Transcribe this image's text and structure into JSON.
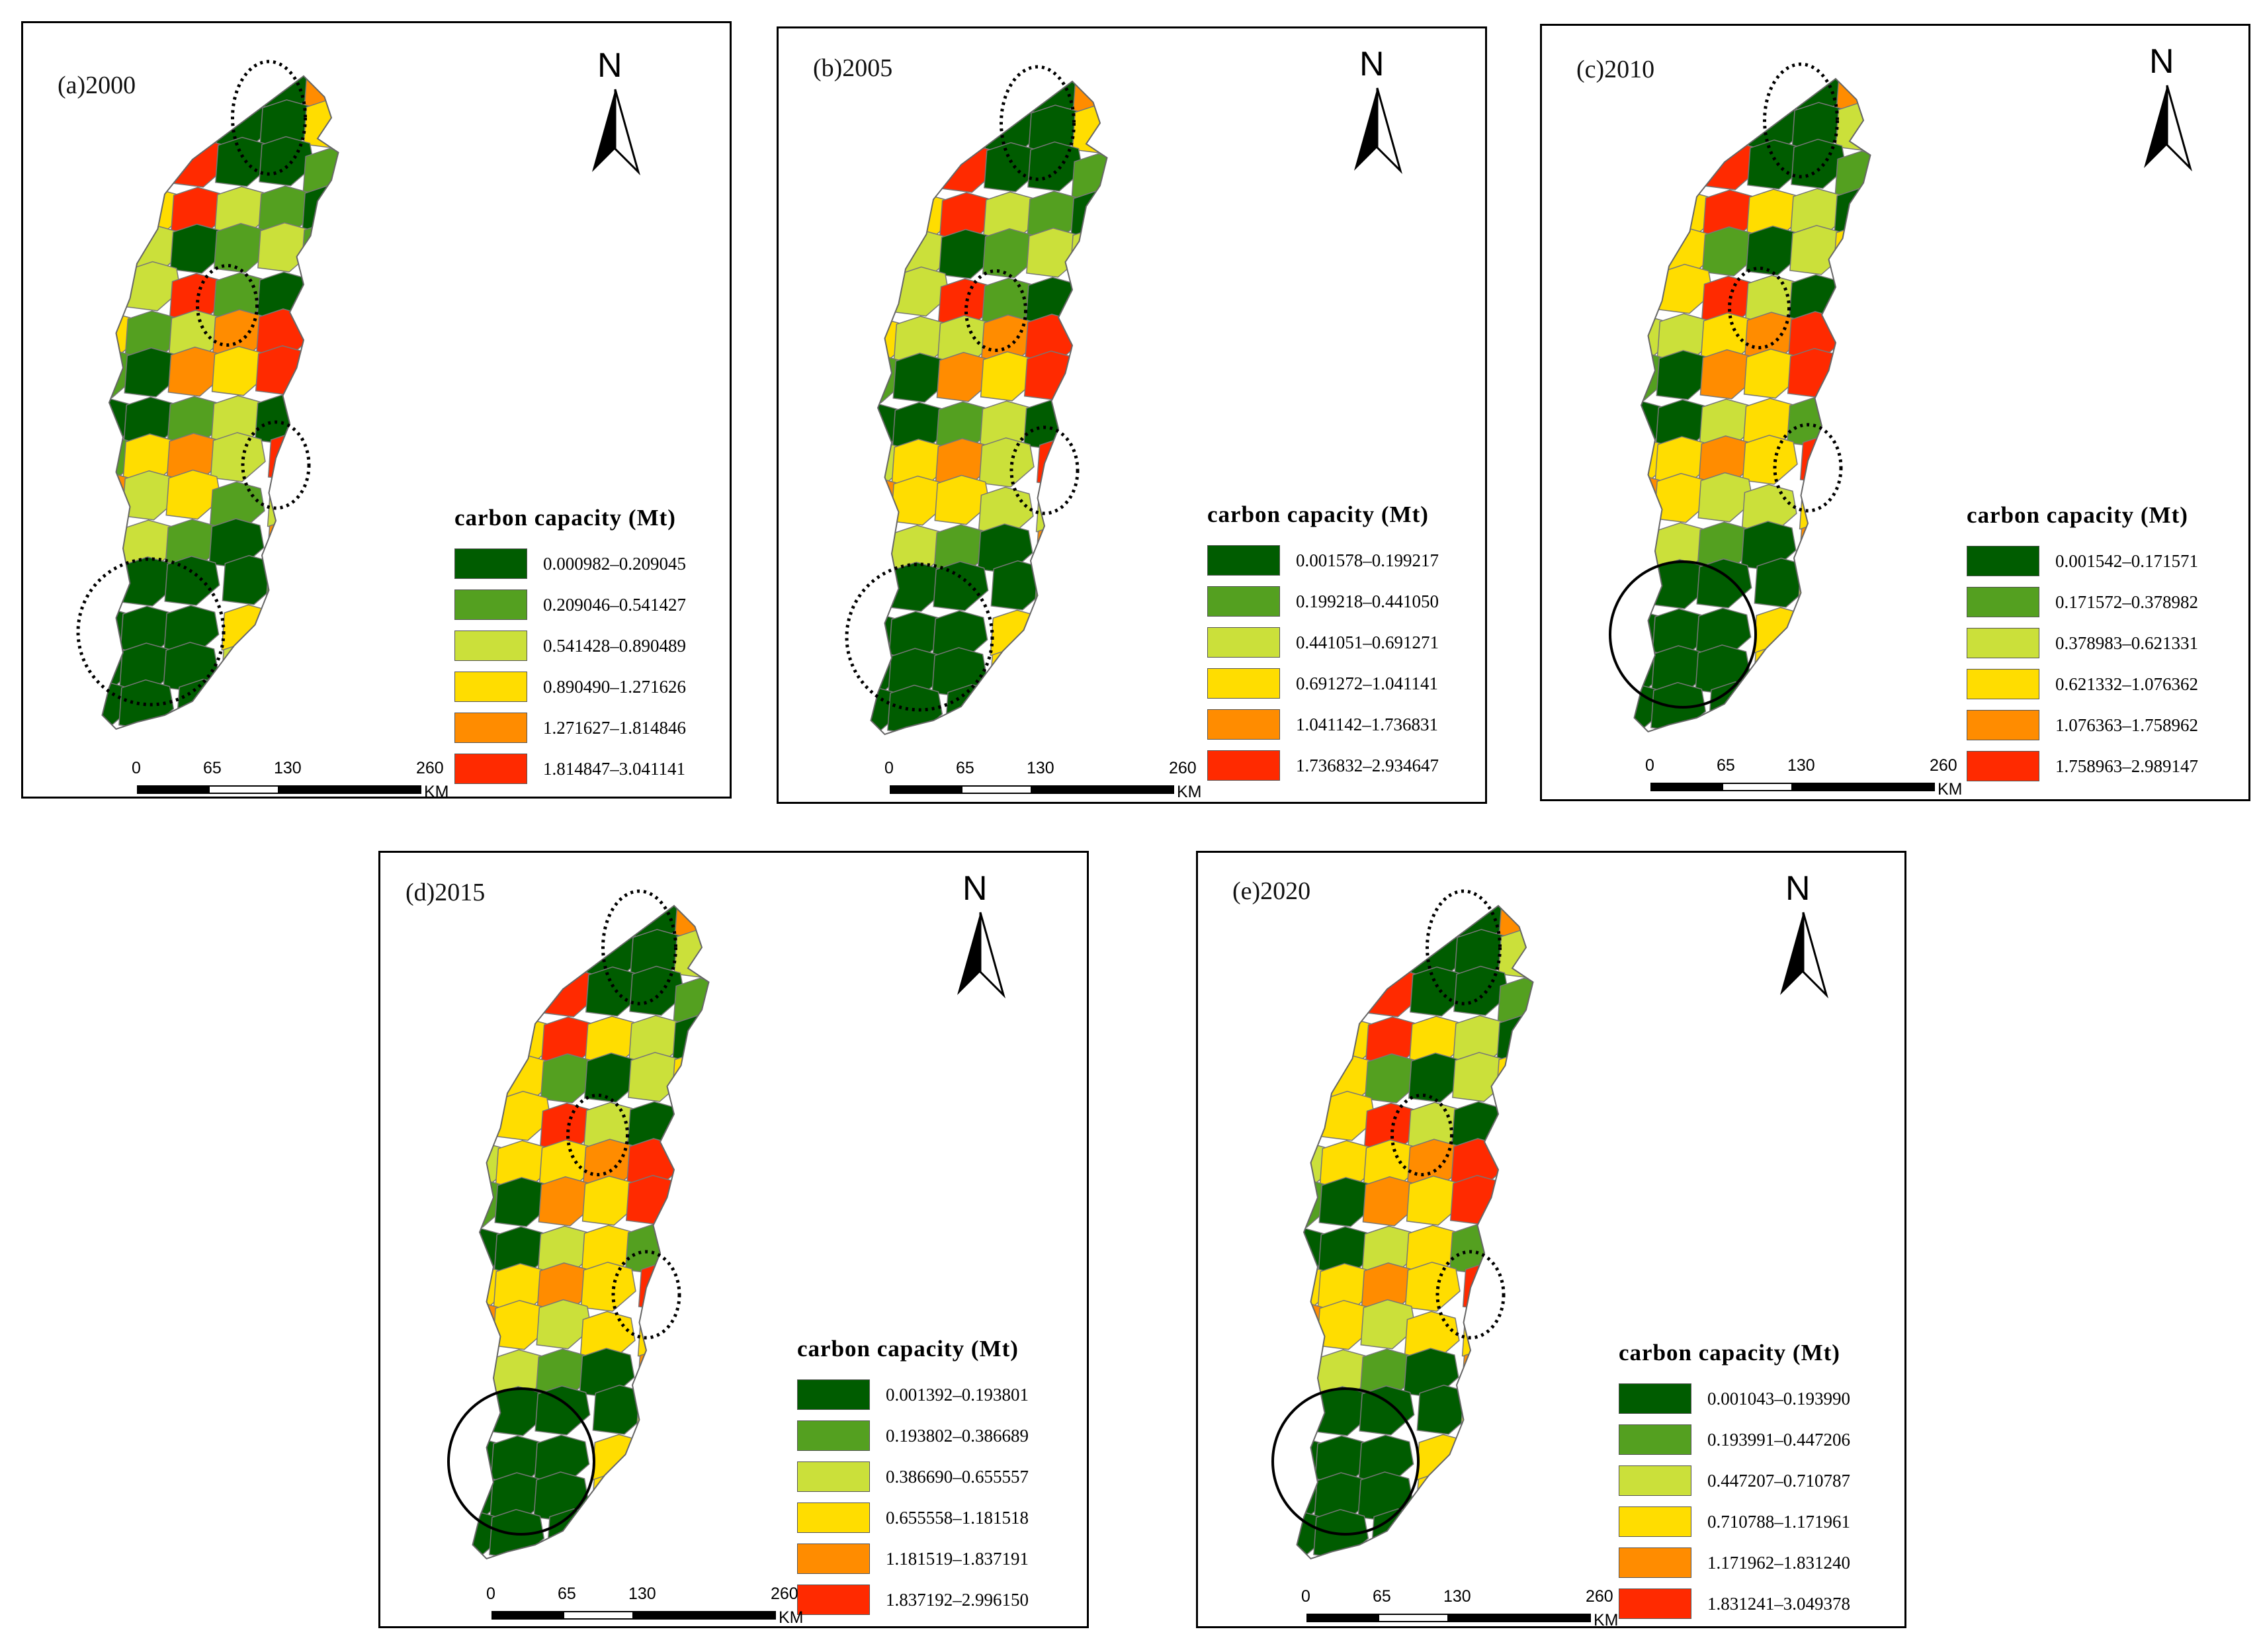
{
  "figure": {
    "legend_title": "carbon capacity (Mt)",
    "scale_ticks": [
      "0",
      "65",
      "130",
      "260"
    ],
    "scale_unit": "KM",
    "north_label": "N",
    "class_colors": [
      "#005c00",
      "#54a020",
      "#cbe03a",
      "#ffdd00",
      "#ff8c00",
      "#ff2a00"
    ]
  },
  "panels": [
    {
      "id": "a",
      "title": "(a)2000",
      "legend": [
        "0.000982–0.209045",
        "0.209046–0.541427",
        "0.541428–0.890489",
        "0.890490–1.271626",
        "1.271627–1.814846",
        "1.814847–3.041141"
      ]
    },
    {
      "id": "b",
      "title": "(b)2005",
      "legend": [
        "0.001578–0.199217",
        "0.199218–0.441050",
        "0.441051–0.691271",
        "0.691272–1.041141",
        "1.041142–1.736831",
        "1.736832–2.934647"
      ]
    },
    {
      "id": "c",
      "title": "(c)2010",
      "legend": [
        "0.001542–0.171571",
        "0.171572–0.378982",
        "0.378983–0.621331",
        "0.621332–1.076362",
        "1.076363–1.758962",
        "1.758963–2.989147"
      ]
    },
    {
      "id": "d",
      "title": "(d)2015",
      "legend": [
        "0.001392–0.193801",
        "0.193802–0.386689",
        "0.386690–0.655557",
        "0.655558–1.181518",
        "1.181519–1.837191",
        "1.837192–2.996150"
      ]
    },
    {
      "id": "e",
      "title": "(e)2020",
      "legend": [
        "0.001043–0.193990",
        "0.193991–0.447206",
        "0.447207–0.710787",
        "0.710788–1.171961",
        "1.171962–1.831240",
        "1.831241–3.049378"
      ]
    }
  ]
}
